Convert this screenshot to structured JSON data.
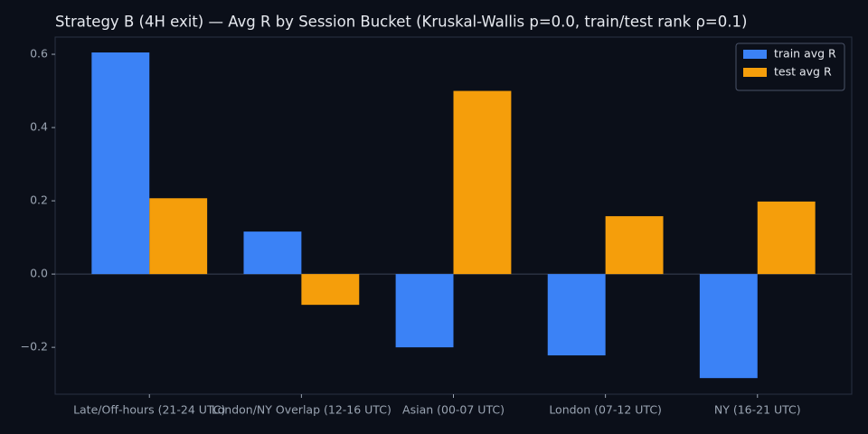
{
  "chart_data": {
    "type": "bar",
    "title": "Strategy B (4H exit) — Avg R by Session Bucket (Kruskal-Wallis p=0.0, train/test rank ρ=0.1)",
    "categories": [
      "Late/Off-hours (21-24 UTC)",
      "London/NY Overlap (12-16 UTC)",
      "Asian (00-07 UTC)",
      "London (07-12 UTC)",
      "NY (16-21 UTC)"
    ],
    "series": [
      {
        "name": "train avg R",
        "color": "#3b82f6",
        "values": [
          0.605,
          0.116,
          -0.2,
          -0.222,
          -0.284
        ]
      },
      {
        "name": "test avg R",
        "color": "#f59e0b",
        "values": [
          0.207,
          -0.084,
          0.5,
          0.158,
          0.198
        ]
      }
    ],
    "ylim": [
      -0.328,
      0.647
    ],
    "yticks": [
      {
        "value": -0.2,
        "label": "−0.2"
      },
      {
        "value": 0,
        "label": "0.0"
      },
      0.2,
      0.4,
      0.6
    ],
    "grid": false,
    "legend": "upper right"
  }
}
